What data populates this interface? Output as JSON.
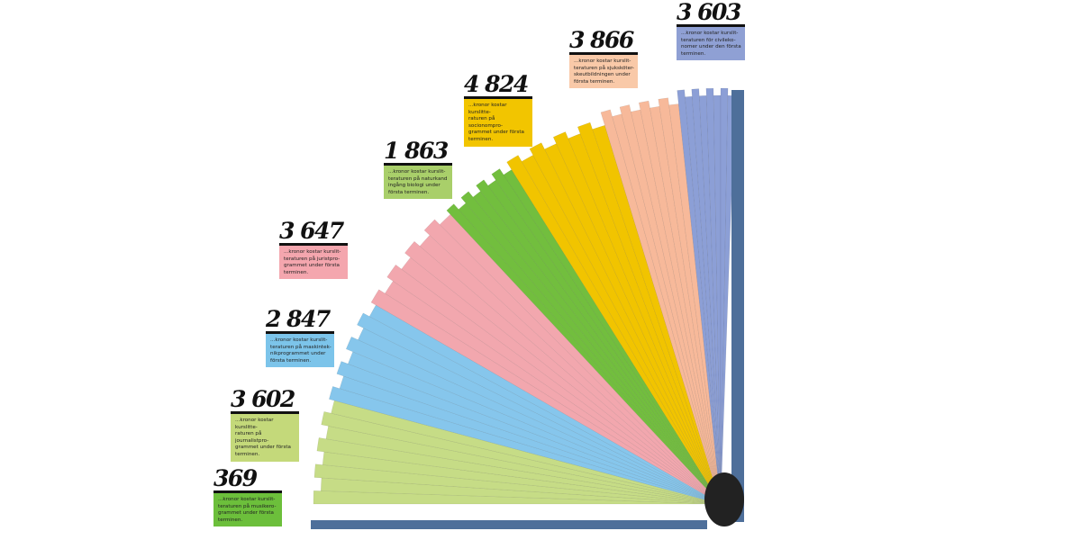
{
  "items": [
    {
      "number": "369",
      "text": [
        "...kronor kostar kurslit-",
        "teraturen på musikero-",
        "grammet under första",
        "terminen."
      ]
    },
    {
      "number": "3 602",
      "text": [
        "...kronor kostar kurslitte-",
        "raturen på journalistpro-",
        "grammet under första",
        "terminen."
      ]
    },
    {
      "number": "2 847",
      "text": [
        "...kronor kostar kurslit-",
        "teraturen på maskintek-",
        "nikprogrammet under",
        "första terminen."
      ]
    },
    {
      "number": "3 647",
      "text": [
        "...kronor kostar kurslit-",
        "teraturen på juristpro-",
        "grammet under första",
        "terminen."
      ]
    },
    {
      "number": "1 863",
      "text": [
        "...kronor kostar kurslit-",
        "teraturen på naturkand",
        "ingång biologi under",
        "första terminen."
      ]
    },
    {
      "number": "4 824",
      "text": [
        "...kronor kostar kurslitte-",
        "raturen på socionompro-",
        "grammet under första",
        "terminen."
      ]
    },
    {
      "number": "3 866",
      "text": [
        "...kronor kostar kurslit-",
        "teraturen på sjuksköter-",
        "skeutbildningen under",
        "första terminen."
      ]
    },
    {
      "number": "3 603",
      "text": [
        "...kronor kostar kurslit-",
        "teraturen för civileko-",
        "nomer under den första",
        "terminen."
      ]
    }
  ]
}
